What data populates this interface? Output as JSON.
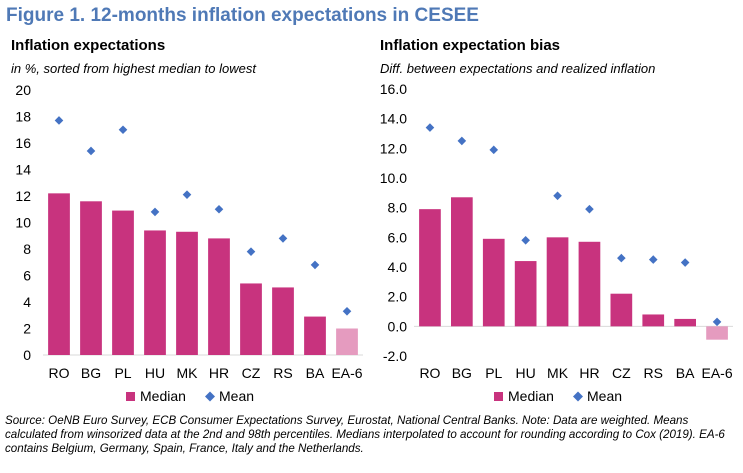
{
  "figure_title": "Figure 1. 12-months inflation expectations in CESEE",
  "source_note": "Source: OeNB Euro Survey, ECB Consumer Expectations Survey, Eurostat, National Central Banks. Note: Data are weighted. Means calculated from winsorized data at the 2nd and 98th percentiles. Medians interpolated to account for rounding according to Cox (2019). EA-6 contains Belgium, Germany, Spain, France, Italy and the Netherlands.",
  "colors": {
    "title": "#4f79b6",
    "median": "#c8337e",
    "median_ea": "#e59bbf",
    "mean": "#4472c4"
  },
  "chart_data": [
    {
      "type": "bar",
      "title": "Inflation expectations",
      "subtitle": "in %, sorted from highest median to lowest",
      "categories": [
        "RO",
        "BG",
        "PL",
        "HU",
        "MK",
        "HR",
        "CZ",
        "RS",
        "BA",
        "EA-6"
      ],
      "series": [
        {
          "name": "Median",
          "kind": "bar",
          "values": [
            12.2,
            11.6,
            10.9,
            9.4,
            9.3,
            8.8,
            5.4,
            5.1,
            2.9,
            2.0
          ]
        },
        {
          "name": "Mean",
          "kind": "marker",
          "values": [
            17.7,
            15.4,
            17.0,
            10.8,
            12.1,
            11.0,
            7.8,
            8.8,
            6.8,
            3.3
          ]
        }
      ],
      "ylim": [
        0,
        20
      ],
      "yticks": [
        0,
        2,
        4,
        6,
        8,
        10,
        12,
        14,
        16,
        18,
        20
      ],
      "ytick_labels": [
        "0",
        "2",
        "4",
        "6",
        "8",
        "10",
        "12",
        "14",
        "16",
        "18",
        "20"
      ],
      "legend": [
        "Median",
        "Mean"
      ],
      "legend_position": "bottom"
    },
    {
      "type": "bar",
      "title": "Inflation expectation bias",
      "subtitle": "Diff. between expectations and realized inflation",
      "categories": [
        "RO",
        "BG",
        "PL",
        "HU",
        "MK",
        "HR",
        "CZ",
        "RS",
        "BA",
        "EA-6"
      ],
      "series": [
        {
          "name": "Median",
          "kind": "bar",
          "values": [
            7.9,
            8.7,
            5.9,
            4.4,
            6.0,
            5.7,
            2.2,
            0.8,
            0.5,
            -0.9
          ]
        },
        {
          "name": "Mean",
          "kind": "marker",
          "values": [
            13.4,
            12.5,
            11.9,
            5.8,
            8.8,
            7.9,
            4.6,
            4.5,
            4.3,
            0.3
          ]
        }
      ],
      "ylim": [
        -2,
        16
      ],
      "yticks": [
        -2,
        0,
        2,
        4,
        6,
        8,
        10,
        12,
        14,
        16
      ],
      "ytick_labels": [
        "-2.0",
        "0.0",
        "2.0",
        "4.0",
        "6.0",
        "8.0",
        "10.0",
        "12.0",
        "14.0",
        "16.0"
      ],
      "legend": [
        "Median",
        "Mean"
      ],
      "legend_position": "bottom"
    }
  ]
}
